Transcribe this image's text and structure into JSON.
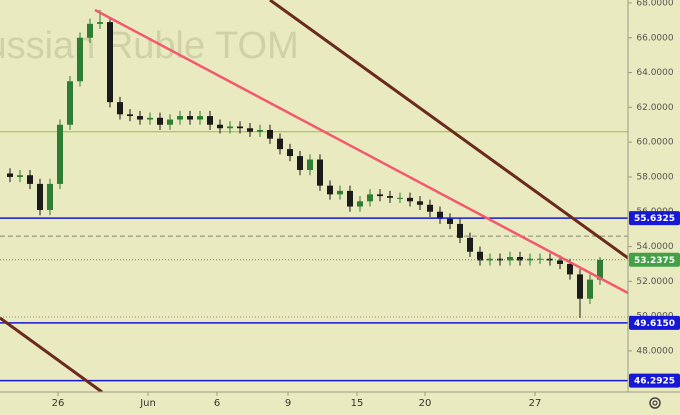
{
  "chart_data": {
    "type": "candlestick",
    "watermark": "Russian Ruble TOM",
    "x": [
      1,
      2,
      3,
      4,
      5,
      6,
      7,
      8,
      9,
      10,
      11,
      12,
      13,
      14,
      15,
      16,
      17,
      18,
      19,
      20,
      21,
      22,
      23,
      24,
      25,
      26,
      27,
      28,
      29,
      30,
      31,
      32,
      33,
      34,
      35,
      36,
      37,
      38,
      39,
      40,
      41,
      42,
      43,
      44,
      45,
      46,
      47,
      48,
      49,
      50,
      51,
      52,
      53,
      54,
      55,
      56,
      57,
      58,
      59,
      60
    ],
    "open": [
      58.2,
      58.0,
      58.1,
      57.6,
      56.1,
      57.6,
      61.0,
      63.5,
      66.0,
      66.8,
      66.9,
      62.3,
      61.6,
      61.5,
      61.3,
      61.4,
      61.0,
      61.3,
      61.5,
      61.3,
      61.5,
      61.0,
      60.8,
      60.9,
      60.8,
      60.6,
      60.7,
      60.2,
      59.6,
      59.2,
      58.4,
      59.0,
      57.5,
      57.0,
      57.2,
      56.3,
      56.6,
      57.0,
      56.9,
      56.8,
      56.8,
      56.6,
      56.4,
      56.0,
      55.6,
      55.3,
      54.5,
      53.7,
      53.2,
      53.3,
      53.2,
      53.4,
      53.2,
      53.3,
      53.3,
      53.2,
      53.0,
      52.4,
      51.0,
      52.1
    ],
    "high": [
      58.5,
      58.4,
      58.4,
      57.9,
      57.9,
      61.3,
      63.8,
      66.3,
      67.1,
      67.6,
      67.2,
      62.6,
      61.9,
      61.8,
      61.7,
      61.7,
      61.6,
      61.8,
      61.8,
      61.8,
      61.8,
      61.3,
      61.2,
      61.2,
      61.1,
      61.0,
      61.0,
      60.5,
      59.9,
      59.5,
      59.3,
      59.3,
      57.8,
      57.5,
      57.5,
      56.9,
      57.3,
      57.3,
      57.2,
      57.1,
      57.1,
      56.9,
      56.7,
      56.3,
      55.9,
      55.6,
      54.8,
      54.0,
      53.6,
      53.6,
      53.7,
      53.7,
      53.6,
      53.6,
      53.6,
      53.5,
      53.3,
      52.7,
      52.4,
      53.4
    ],
    "low": [
      57.7,
      57.7,
      57.3,
      55.8,
      55.8,
      57.3,
      60.7,
      63.2,
      65.7,
      66.5,
      62.0,
      61.3,
      61.2,
      61.0,
      61.0,
      60.7,
      60.7,
      61.0,
      61.0,
      61.0,
      60.7,
      60.5,
      60.5,
      60.5,
      60.3,
      60.3,
      59.9,
      59.3,
      58.9,
      58.1,
      58.1,
      57.2,
      56.7,
      56.7,
      56.0,
      56.0,
      56.3,
      56.6,
      56.5,
      56.5,
      56.3,
      56.1,
      55.7,
      55.3,
      55.0,
      54.2,
      53.4,
      52.9,
      52.9,
      52.9,
      52.9,
      52.9,
      52.9,
      53.0,
      52.9,
      52.7,
      52.1,
      49.9,
      50.7,
      51.8
    ],
    "close": [
      58.0,
      58.1,
      57.6,
      56.1,
      57.6,
      61.0,
      63.5,
      66.0,
      66.8,
      66.9,
      62.3,
      61.6,
      61.5,
      61.3,
      61.4,
      61.0,
      61.3,
      61.5,
      61.3,
      61.5,
      61.0,
      60.8,
      60.9,
      60.8,
      60.6,
      60.7,
      60.2,
      59.6,
      59.2,
      58.4,
      59.0,
      57.5,
      57.0,
      57.2,
      56.3,
      56.6,
      57.0,
      56.9,
      56.8,
      56.8,
      56.6,
      56.4,
      56.0,
      55.6,
      55.3,
      54.5,
      53.7,
      53.2,
      53.3,
      53.2,
      53.4,
      53.2,
      53.3,
      53.3,
      53.2,
      53.0,
      52.4,
      51.0,
      52.1,
      53.2375
    ],
    "up_color": "#2e7d32",
    "down_color": "#1b1b1b",
    "last_price": 53.2375,
    "last_price_color": "#43a047",
    "levels": [
      {
        "value": 55.6325,
        "color": "#1717d6"
      },
      {
        "value": 49.615,
        "label": "49.6150",
        "color": "#1717d6"
      },
      {
        "value": 46.2925,
        "color": "#1717d6"
      }
    ],
    "reference_lines": [
      {
        "value": 60.6,
        "color": "#9bbf3a",
        "style": "solid"
      },
      {
        "value": 54.6,
        "color": "#8a8a7a",
        "style": "dashed"
      },
      {
        "value": 49.95,
        "color": "#9a9a8a",
        "style": "dotted"
      }
    ],
    "xlim": [
      0,
      62.8
    ],
    "xticks": [
      {
        "value": 5.8,
        "label": "26"
      },
      {
        "value": 14.8,
        "label": "Jun"
      },
      {
        "value": 21.7,
        "label": "6"
      },
      {
        "value": 28.8,
        "label": "9"
      },
      {
        "value": 35.7,
        "label": "15"
      },
      {
        "value": 42.5,
        "label": "20"
      },
      {
        "value": 53.5,
        "label": "27"
      }
    ],
    "ylim": [
      45.64,
      68.17
    ],
    "yticks": [
      {
        "value": 48,
        "label": "48.0000"
      },
      {
        "value": 50,
        "label": "50.0000"
      },
      {
        "value": 52,
        "label": "52.0000"
      },
      {
        "value": 54,
        "label": "54.0000"
      },
      {
        "value": 56,
        "label": "56.0000"
      },
      {
        "value": 58,
        "label": "58.0000"
      },
      {
        "value": 60,
        "label": "60.0000"
      },
      {
        "value": 62,
        "label": "62.0000"
      },
      {
        "value": 64,
        "label": "64.0000"
      },
      {
        "value": 66,
        "label": "66.0000"
      },
      {
        "value": 68,
        "label": "68.0000"
      }
    ]
  }
}
